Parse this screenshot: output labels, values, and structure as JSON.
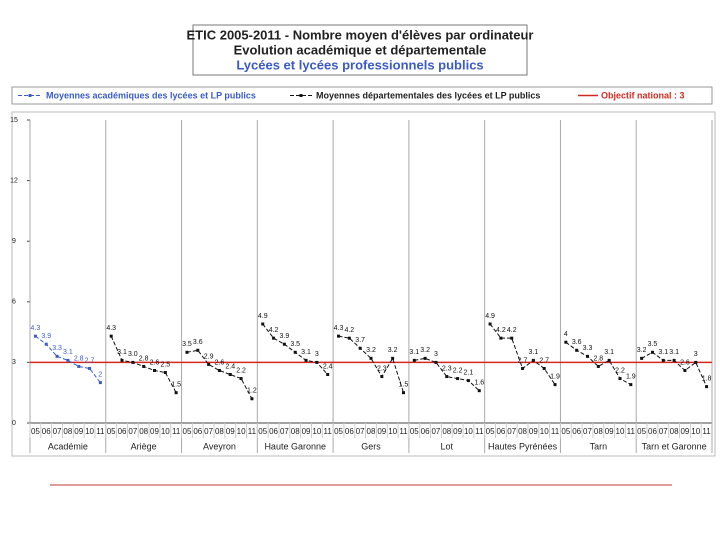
{
  "chart_data": {
    "type": "line",
    "title": [
      "ETIC 2005-2011 - Nombre moyen d'élèves par ordinateur",
      "Evolution académique et départementale",
      "Lycées et lycées professionnels publics"
    ],
    "groups": [
      "Académie",
      "Ariège",
      "Aveyron",
      "Haute Garonne",
      "Gers",
      "Lot",
      "Hautes Pyrénées",
      "Tarn",
      "Tarn et Garonne"
    ],
    "years": [
      "05",
      "06",
      "07",
      "08",
      "09",
      "10",
      "11"
    ],
    "ylim": [
      0,
      15
    ],
    "yticks": [
      0,
      3,
      6,
      9,
      12,
      15
    ],
    "series": [
      {
        "name": "Moyennes académiques des lycées et LP publics",
        "color": "#3a5bc7",
        "values": [
          4.3,
          3.9,
          3.3,
          3.1,
          2.8,
          2.7,
          2,
          null,
          null,
          null,
          null,
          null,
          null,
          null,
          null,
          null,
          null,
          null,
          null,
          null,
          null,
          null,
          null,
          null,
          null,
          null,
          null,
          null,
          null,
          null,
          null,
          null,
          null,
          null,
          null,
          null,
          null,
          null,
          null,
          null,
          null,
          null,
          null,
          null,
          null,
          null,
          null,
          null,
          null,
          null,
          null,
          null,
          null,
          null,
          null,
          null,
          null,
          null,
          null,
          null,
          null,
          null,
          null
        ],
        "value_labels": [
          "4.3",
          "3.9",
          "3.3",
          "3.1",
          "2.8",
          "2.7",
          "2",
          null,
          null,
          null,
          null,
          null,
          null,
          null,
          null,
          null,
          null,
          null,
          null,
          null,
          null,
          null,
          null,
          null,
          null,
          null,
          null,
          null,
          null,
          null,
          null,
          null,
          null,
          null,
          null,
          null,
          null,
          null,
          null,
          null,
          null,
          null,
          null,
          null,
          null,
          null,
          null,
          null,
          null,
          null,
          null,
          null,
          null,
          null,
          null,
          null,
          null,
          null,
          null,
          null,
          null,
          null,
          null
        ]
      },
      {
        "name": "Moyennes départementales des lycées et LP  publics",
        "color": "#111111",
        "values": [
          null,
          null,
          null,
          null,
          null,
          null,
          null,
          4.3,
          3.1,
          3.0,
          2.8,
          2.6,
          2.5,
          1.5,
          3.5,
          3.6,
          2.9,
          2.6,
          2.4,
          2.2,
          1.2,
          4.9,
          4.2,
          3.9,
          3.5,
          3.1,
          3,
          2.4,
          4.3,
          4.2,
          3.7,
          3.2,
          2.3,
          3.2,
          1.5,
          3.1,
          3.2,
          3,
          2.3,
          2.2,
          2.1,
          1.6,
          4.9,
          4.2,
          4.2,
          2.7,
          3.1,
          2.7,
          1.9,
          4,
          3.6,
          3.3,
          2.8,
          3.1,
          2.2,
          1.9,
          3.2,
          3.5,
          3.1,
          3.1,
          2.6,
          3,
          1.8
        ],
        "value_labels": [
          null,
          null,
          null,
          null,
          null,
          null,
          null,
          "4.3",
          "3.1",
          "3.0",
          "2.8",
          "2.6",
          "2.5",
          "1.5",
          "3.5",
          "3.6",
          "2.9",
          "2.6",
          "2.4",
          "2.2",
          "1.2",
          "4.9",
          "4.2",
          "3.9",
          "3.5",
          "3.1",
          "3",
          "2.4",
          "4.3",
          "4.2",
          "3.7",
          "3.2",
          "2.3",
          "3.2",
          "1.5",
          "3.1",
          "3.2",
          "3",
          "2.3",
          "2.2",
          "2.1",
          "1.6",
          "4.9",
          "4.2",
          "4.2",
          "2.7",
          "3.1",
          "2.7",
          "1.9",
          "4",
          "3.6",
          "3.3",
          "2.8",
          "3.1",
          "2.2",
          "1.9",
          "3.2",
          "3.5",
          "3.1",
          "3.1",
          "2.6",
          "3",
          "1.8"
        ]
      }
    ],
    "target": {
      "name": "Objectif national : 3",
      "value": 3,
      "color": "#d42a1e"
    }
  }
}
